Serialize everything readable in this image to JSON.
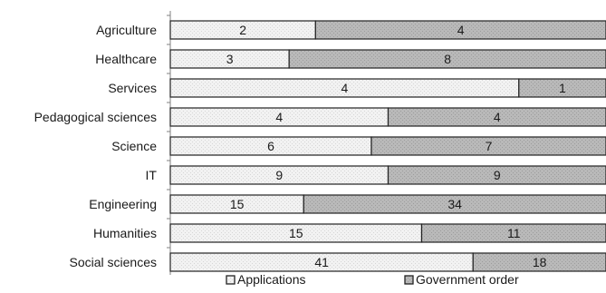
{
  "chart_data": {
    "type": "bar",
    "orientation": "horizontal",
    "stacked": "percent",
    "title": "",
    "xlabel": "",
    "ylabel": "",
    "categories": [
      "Agriculture",
      "Healthcare",
      "Services",
      "Pedagogical sciences",
      "Science",
      "IT",
      "Engineering",
      "Humanities",
      "Social sciences"
    ],
    "series": [
      {
        "name": "Applications",
        "values": [
          2,
          3,
          4,
          4,
          6,
          9,
          15,
          15,
          41
        ],
        "color": "#f0f0f0"
      },
      {
        "name": "Government order",
        "values": [
          4,
          8,
          1,
          4,
          7,
          9,
          34,
          11,
          18
        ],
        "color": "#b4b4b4"
      }
    ],
    "grid": false,
    "legend": "bottom"
  }
}
